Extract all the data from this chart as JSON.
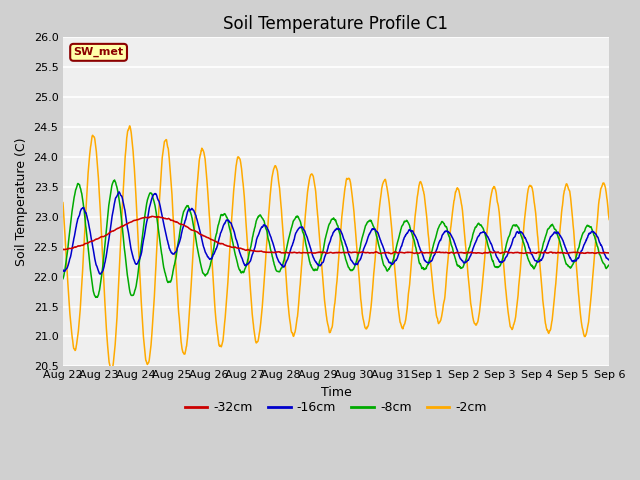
{
  "title": "Soil Temperature Profile C1",
  "xlabel": "Time",
  "ylabel": "Soil Temperature (C)",
  "ylim": [
    20.5,
    26.0
  ],
  "yticks": [
    20.5,
    21.0,
    21.5,
    22.0,
    22.5,
    23.0,
    23.5,
    24.0,
    24.5,
    25.0,
    25.5,
    26.0
  ],
  "xtick_labels": [
    "Aug 22",
    "Aug 23",
    "Aug 24",
    "Aug 25",
    "Aug 26",
    "Aug 27",
    "Aug 28",
    "Aug 29",
    "Aug 30",
    "Aug 31",
    "Sep 1",
    "Sep 2",
    "Sep 3",
    "Sep 4",
    "Sep 5",
    "Sep 6"
  ],
  "colors": {
    "red": "#cc0000",
    "blue": "#0000cc",
    "green": "#00aa00",
    "orange": "#ffaa00"
  },
  "line_labels": [
    "-32cm",
    "-16cm",
    "-8cm",
    "-2cm"
  ],
  "fig_bg": "#d0d0d0",
  "plot_bg": "#efefef",
  "sw_met_label": "SW_met",
  "sw_met_bg": "#ffffaa",
  "sw_met_border": "#8b0000",
  "title_fontsize": 12,
  "axis_fontsize": 8,
  "label_fontsize": 9
}
